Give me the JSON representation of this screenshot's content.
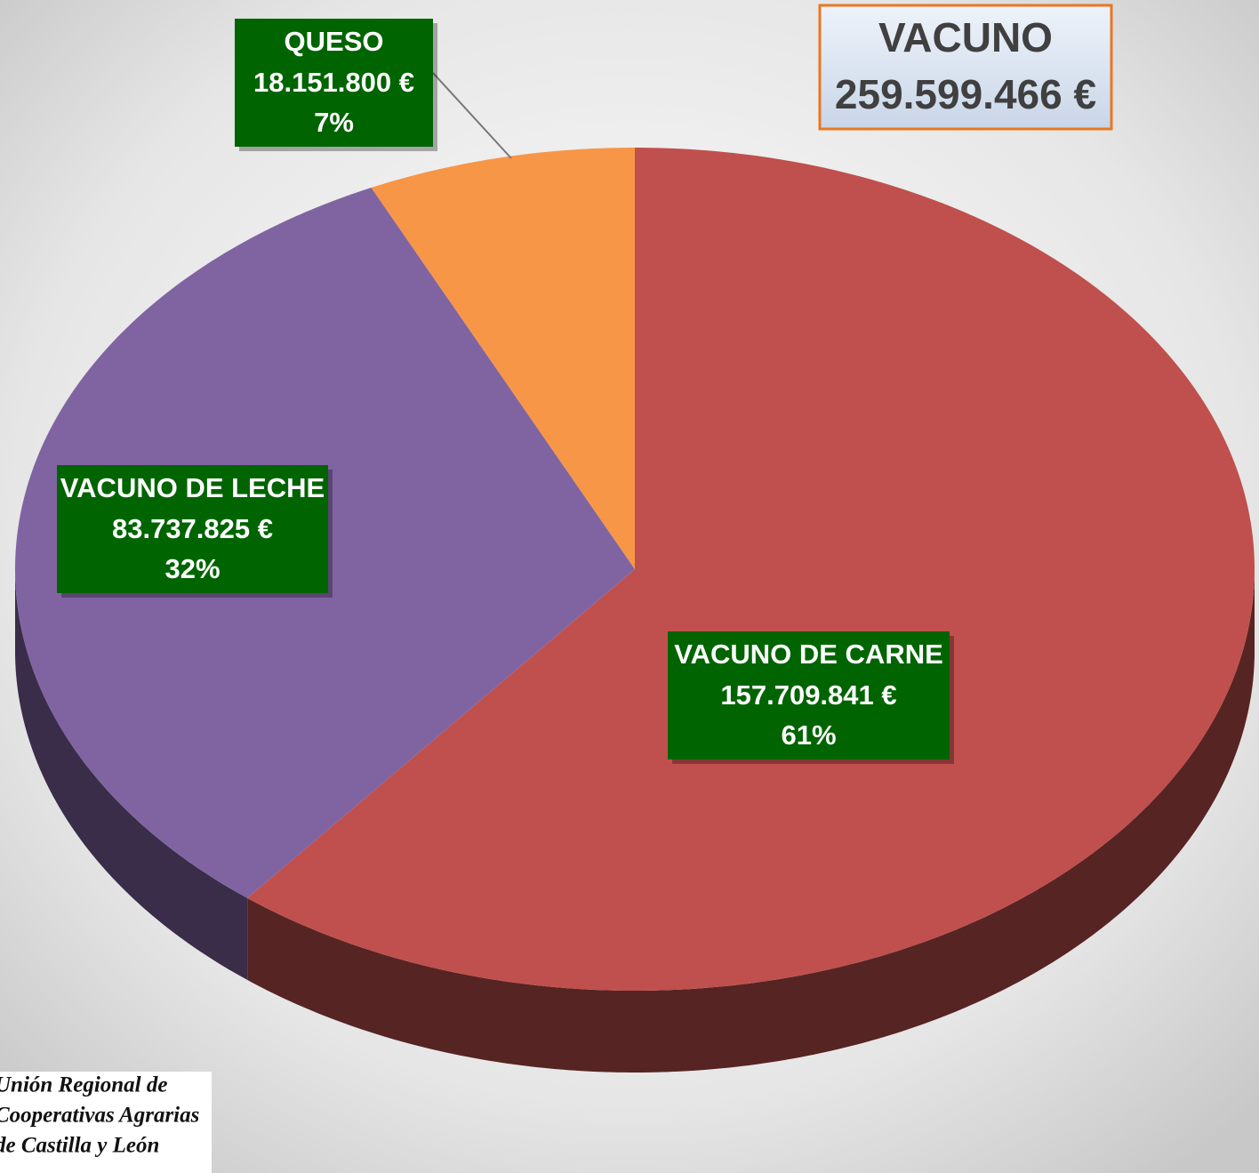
{
  "chart_data": {
    "type": "pie",
    "title": "VACUNO",
    "total": {
      "value": 259599466,
      "label": "259.599.466 €"
    },
    "categories": [
      "VACUNO DE CARNE",
      "VACUNO DE LECHE",
      "QUESO"
    ],
    "values": [
      157709841,
      83737825,
      18151800
    ],
    "value_labels": [
      "157.709.841 €",
      "83.737.825 €",
      "18.151.800 €"
    ],
    "percent_labels": [
      "61%",
      "32%",
      "7%"
    ],
    "colors": [
      "#c0504d",
      "#8064a2",
      "#f79646"
    ],
    "source": [
      "Unión Regional de",
      "Cooperativas Agrarias",
      "de Castilla y León"
    ]
  }
}
